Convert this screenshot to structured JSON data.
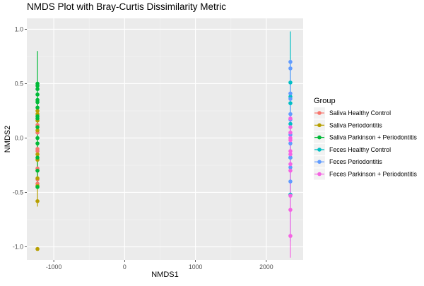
{
  "chart_data": {
    "type": "scatter",
    "title": "NMDS Plot with Bray-Curtis Dissimilarity Metric",
    "xlabel": "NMDS1",
    "ylabel": "NMDS2",
    "xlim": [
      -1380,
      2520
    ],
    "ylim": [
      -1.12,
      1.1
    ],
    "xticks": [
      -1000,
      0,
      1000,
      2000
    ],
    "xtick_labels": [
      "-1000",
      "0",
      "1000",
      "2000"
    ],
    "yticks": [
      -1.0,
      -0.5,
      0.0,
      0.5,
      1.0
    ],
    "ytick_labels": [
      "-1.0",
      "-0.5",
      "0.0",
      "0.5",
      "1.0"
    ],
    "grid": true,
    "background": "#EBEBEB",
    "legend": {
      "title": "Group",
      "position": "right"
    },
    "series": [
      {
        "name": "Saliva Healthy Control",
        "color": "#F8766D",
        "x": [
          -1230,
          -1230,
          -1230,
          -1230,
          -1230,
          -1230,
          -1230,
          -1230
        ],
        "y": [
          -0.1,
          -0.12,
          -0.28,
          -0.3,
          -0.38,
          -0.42,
          0.12,
          0.05
        ],
        "range": [
          -0.46,
          0.15
        ]
      },
      {
        "name": "Saliva Periodontitis",
        "color": "#B79F00",
        "x": [
          -1230,
          -1230,
          -1230,
          -1230,
          -1230,
          -1230,
          -1230,
          -1230,
          -1230,
          -1230
        ],
        "y": [
          -1.02,
          -0.58,
          -0.44,
          -0.37,
          -0.2,
          -0.15,
          0.07,
          0.16,
          0.22,
          0.25
        ],
        "range": [
          -0.63,
          0.32
        ]
      },
      {
        "name": "Saliva Parkinson + Periodontitis",
        "color": "#00BA38",
        "x": [
          -1230,
          -1230,
          -1230,
          -1230,
          -1230,
          -1230,
          -1230,
          -1230,
          -1230,
          -1230,
          -1230,
          -1230,
          -1230,
          -1230,
          -1230
        ],
        "y": [
          0.5,
          0.48,
          0.45,
          0.4,
          0.35,
          0.33,
          0.28,
          0.2,
          0.18,
          0.1,
          0.0,
          -0.05,
          -0.18,
          -0.3,
          -0.45
        ],
        "range": [
          -0.45,
          0.8
        ]
      },
      {
        "name": "Feces Healthy Control",
        "color": "#00BFC4",
        "x": [
          2340,
          2340,
          2340,
          2340,
          2340,
          2340
        ],
        "y": [
          0.51,
          0.38,
          0.32,
          0.13,
          -0.18,
          -0.52
        ],
        "range": [
          -0.55,
          0.98
        ]
      },
      {
        "name": "Feces Periodontitis",
        "color": "#619CFF",
        "x": [
          2340,
          2340,
          2340,
          2340,
          2340,
          2340,
          2340,
          2340,
          2340,
          2340,
          2340
        ],
        "y": [
          0.7,
          0.64,
          0.41,
          0.36,
          0.22,
          0.03,
          -0.05,
          -0.18,
          -0.27,
          -0.4,
          0.17
        ],
        "range": [
          -0.95,
          0.72
        ]
      },
      {
        "name": "Feces Parkinson + Periodontitis",
        "color": "#F564E3",
        "x": [
          2340,
          2340,
          2340,
          2340,
          2340,
          2340,
          2340,
          2340,
          2340,
          2340,
          2340,
          2340
        ],
        "y": [
          0.18,
          0.1,
          0.05,
          0.0,
          -0.02,
          -0.12,
          -0.15,
          -0.24,
          -0.3,
          -0.53,
          -0.66,
          -0.9
        ],
        "range": [
          -1.1,
          0.2
        ]
      }
    ]
  }
}
